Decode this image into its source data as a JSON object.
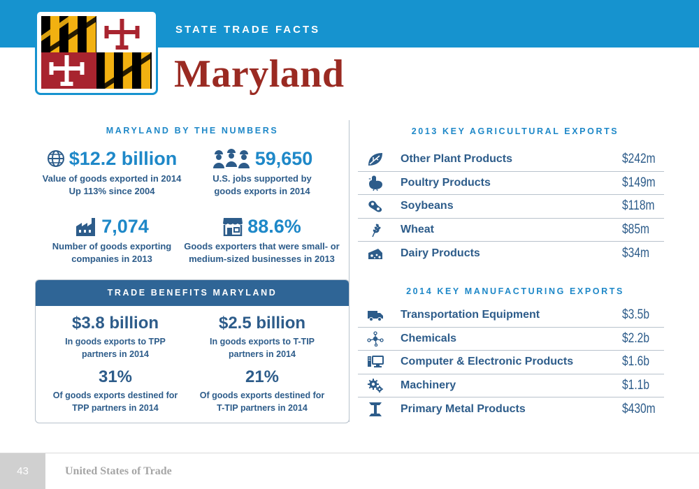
{
  "header": {
    "kicker": "STATE TRADE FACTS",
    "title": "Maryland",
    "flag_icon": "maryland-flag",
    "colors": {
      "bar": "#1693cf",
      "title": "#9a2a22",
      "accent": "#1e88c8",
      "navy": "#2d5c8a"
    }
  },
  "numbers": {
    "heading": "MARYLAND BY THE NUMBERS",
    "stats": [
      {
        "icon": "globe-icon",
        "value": "$12.2 billion",
        "line1": "Value of goods exported in 2014",
        "line2": "Up 113% since 2004"
      },
      {
        "icon": "workers-icon",
        "value": "59,650",
        "line1": "U.S. jobs supported by",
        "line2": "goods exports in 2014"
      },
      {
        "icon": "factory-icon",
        "value": "7,074",
        "line1": "Number of goods exporting",
        "line2": "companies in 2013"
      },
      {
        "icon": "storefront-icon",
        "value": "88.6%",
        "line1": "Goods exporters that were small- or",
        "line2": "medium-sized businesses in 2013"
      }
    ]
  },
  "benefits": {
    "heading": "TRADE BENEFITS MARYLAND",
    "stats": [
      {
        "value": "$3.8 billion",
        "line1": "In goods exports to TPP",
        "line2": "partners in 2014"
      },
      {
        "value": "$2.5 billion",
        "line1": "In goods exports to T-TIP",
        "line2": "partners in 2014"
      },
      {
        "value": "31%",
        "line1": "Of goods exports destined for",
        "line2": "TPP partners in 2014"
      },
      {
        "value": "21%",
        "line1": "Of goods exports destined for",
        "line2": "T-TIP partners in 2014"
      }
    ]
  },
  "agricultural": {
    "heading": "2013 KEY AGRICULTURAL EXPORTS",
    "items": [
      {
        "icon": "leaf-icon",
        "label": "Other Plant Products",
        "value": "$242m"
      },
      {
        "icon": "chicken-icon",
        "label": "Poultry Products",
        "value": "$149m"
      },
      {
        "icon": "soybean-icon",
        "label": "Soybeans",
        "value": "$118m"
      },
      {
        "icon": "wheat-icon",
        "label": "Wheat",
        "value": "$85m"
      },
      {
        "icon": "cheese-icon",
        "label": "Dairy Products",
        "value": "$34m"
      }
    ]
  },
  "manufacturing": {
    "heading": "2014 KEY MANUFACTURING EXPORTS",
    "items": [
      {
        "icon": "truck-icon",
        "label": "Transportation Equipment",
        "value": "$3.5b"
      },
      {
        "icon": "molecule-icon",
        "label": "Chemicals",
        "value": "$2.2b"
      },
      {
        "icon": "computer-icon",
        "label": "Computer & Electronic Products",
        "value": "$1.6b"
      },
      {
        "icon": "gears-icon",
        "label": "Machinery",
        "value": "$1.1b"
      },
      {
        "icon": "i-beam-icon",
        "label": "Primary Metal Products",
        "value": "$430m"
      }
    ]
  },
  "footer": {
    "page": "43",
    "book": "United States of Trade"
  }
}
